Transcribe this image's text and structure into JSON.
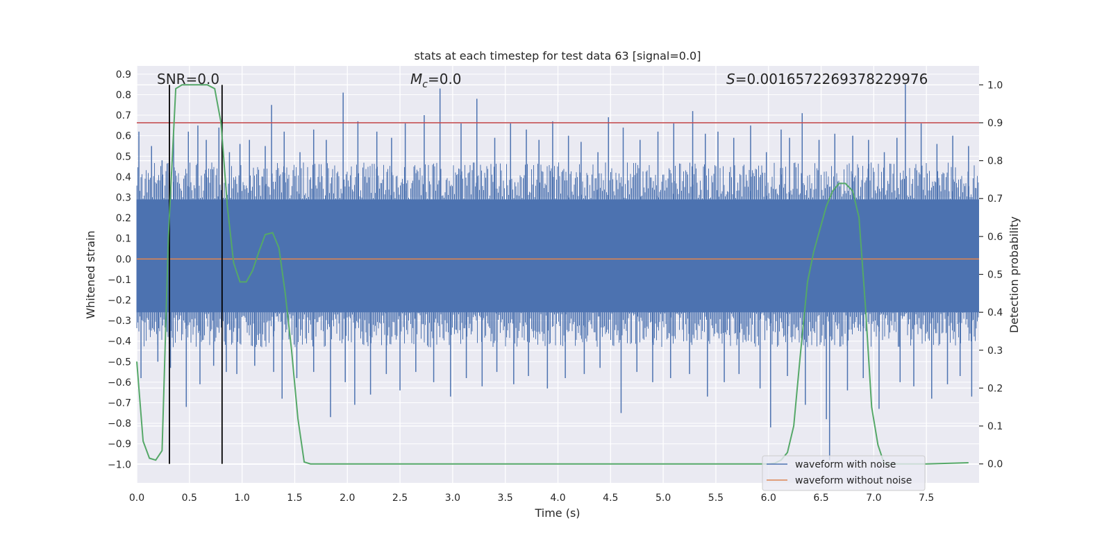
{
  "chart_data": {
    "type": "line",
    "title": "stats at each timestep for test data 63 [signal=0.0]",
    "xlabel": "Time (s)",
    "ylabel_left": "Whitened strain",
    "ylabel_right": "Detection probability",
    "xlim": [
      0.0,
      8.0
    ],
    "ylim_left": [
      -1.09,
      0.94
    ],
    "ylim_right": [
      -0.05,
      1.05
    ],
    "x_ticks": [
      0.0,
      0.5,
      1.0,
      1.5,
      2.0,
      2.5,
      3.0,
      3.5,
      4.0,
      4.5,
      5.0,
      5.5,
      6.0,
      6.5,
      7.0,
      7.5
    ],
    "x_tick_labels": [
      "0.0",
      "0.5",
      "1.0",
      "1.5",
      "2.0",
      "2.5",
      "3.0",
      "3.5",
      "4.0",
      "4.5",
      "5.0",
      "5.5",
      "6.0",
      "6.5",
      "7.0",
      "7.5"
    ],
    "y_left_ticks": [
      0.9,
      0.8,
      0.7,
      0.6,
      0.5,
      0.4,
      0.3,
      0.2,
      0.1,
      0.0,
      -0.1,
      -0.2,
      -0.3,
      -0.4,
      -0.5,
      -0.6,
      -0.7,
      -0.8,
      -0.9,
      -1.0
    ],
    "y_left_tick_labels": [
      "0.9",
      "0.8",
      "0.7",
      "0.6",
      "0.5",
      "0.4",
      "0.3",
      "0.2",
      "0.1",
      "0.0",
      "−0.1",
      "−0.2",
      "−0.3",
      "−0.4",
      "−0.5",
      "−0.6",
      "−0.7",
      "−0.8",
      "−0.9",
      "−1.0"
    ],
    "y_right_ticks": [
      1.0,
      0.9,
      0.8,
      0.7,
      0.6,
      0.5,
      0.4,
      0.3,
      0.2,
      0.1,
      0.0
    ],
    "y_right_tick_labels": [
      "1.0",
      "0.9",
      "0.8",
      "0.7",
      "0.6",
      "0.5",
      "0.4",
      "0.3",
      "0.2",
      "0.1",
      "0.0"
    ],
    "annotations": {
      "snr": "SNR=0.0",
      "mc_symbol": "M",
      "mc_sub": "c",
      "mc_value": "=0.0",
      "s_symbol": "S",
      "s_value": "=0.0016572269378229976"
    },
    "threshold_right": 0.9,
    "vertical_lines_x": [
      0.31,
      0.81
    ],
    "noise_band": {
      "min": -0.26,
      "max": 0.29
    },
    "noise_peaks_up": [
      [
        0.02,
        0.62
      ],
      [
        0.14,
        0.55
      ],
      [
        0.24,
        0.48
      ],
      [
        0.35,
        0.63
      ],
      [
        0.49,
        0.62
      ],
      [
        0.58,
        0.65
      ],
      [
        0.66,
        0.58
      ],
      [
        0.78,
        0.64
      ],
      [
        0.88,
        0.52
      ],
      [
        0.98,
        0.56
      ],
      [
        1.07,
        0.58
      ],
      [
        1.22,
        0.55
      ],
      [
        1.28,
        0.75
      ],
      [
        1.4,
        0.62
      ],
      [
        1.55,
        0.52
      ],
      [
        1.68,
        0.63
      ],
      [
        1.8,
        0.58
      ],
      [
        1.96,
        0.81
      ],
      [
        2.1,
        0.67
      ],
      [
        2.28,
        0.62
      ],
      [
        2.42,
        0.59
      ],
      [
        2.55,
        0.66
      ],
      [
        2.73,
        0.7
      ],
      [
        2.88,
        0.83
      ],
      [
        3.08,
        0.66
      ],
      [
        3.23,
        0.78
      ],
      [
        3.4,
        0.59
      ],
      [
        3.55,
        0.66
      ],
      [
        3.7,
        0.63
      ],
      [
        3.82,
        0.58
      ],
      [
        3.95,
        0.67
      ],
      [
        4.1,
        0.6
      ],
      [
        4.22,
        0.57
      ],
      [
        4.38,
        0.52
      ],
      [
        4.48,
        0.69
      ],
      [
        4.62,
        0.64
      ],
      [
        4.78,
        0.58
      ],
      [
        4.95,
        0.62
      ],
      [
        5.1,
        0.66
      ],
      [
        5.28,
        0.72
      ],
      [
        5.4,
        0.61
      ],
      [
        5.52,
        0.62
      ],
      [
        5.67,
        0.59
      ],
      [
        5.83,
        0.65
      ],
      [
        5.98,
        0.52
      ],
      [
        6.12,
        0.63
      ],
      [
        6.2,
        0.59
      ],
      [
        6.32,
        0.71
      ],
      [
        6.48,
        0.58
      ],
      [
        6.63,
        0.61
      ],
      [
        6.8,
        0.6
      ],
      [
        6.95,
        0.58
      ],
      [
        7.1,
        0.52
      ],
      [
        7.22,
        0.59
      ],
      [
        7.3,
        0.85
      ],
      [
        7.45,
        0.66
      ],
      [
        7.6,
        0.56
      ],
      [
        7.75,
        0.6
      ],
      [
        7.9,
        0.55
      ]
    ],
    "noise_peaks_down": [
      [
        0.04,
        -0.58
      ],
      [
        0.2,
        -0.5
      ],
      [
        0.32,
        -0.53
      ],
      [
        0.47,
        -0.72
      ],
      [
        0.6,
        -0.61
      ],
      [
        0.73,
        -0.52
      ],
      [
        0.85,
        -0.55
      ],
      [
        0.95,
        -0.56
      ],
      [
        1.12,
        -0.52
      ],
      [
        1.3,
        -0.55
      ],
      [
        1.38,
        -0.68
      ],
      [
        1.52,
        -0.58
      ],
      [
        1.68,
        -0.55
      ],
      [
        1.84,
        -0.77
      ],
      [
        1.98,
        -0.6
      ],
      [
        2.07,
        -0.71
      ],
      [
        2.22,
        -0.66
      ],
      [
        2.37,
        -0.56
      ],
      [
        2.5,
        -0.64
      ],
      [
        2.65,
        -0.55
      ],
      [
        2.82,
        -0.6
      ],
      [
        2.98,
        -0.67
      ],
      [
        3.13,
        -0.58
      ],
      [
        3.28,
        -0.62
      ],
      [
        3.42,
        -0.55
      ],
      [
        3.58,
        -0.61
      ],
      [
        3.72,
        -0.57
      ],
      [
        3.9,
        -0.63
      ],
      [
        4.07,
        -0.58
      ],
      [
        4.25,
        -0.56
      ],
      [
        4.4,
        -0.53
      ],
      [
        4.6,
        -0.75
      ],
      [
        4.75,
        -0.55
      ],
      [
        4.9,
        -0.6
      ],
      [
        5.07,
        -0.58
      ],
      [
        5.25,
        -0.56
      ],
      [
        5.42,
        -0.67
      ],
      [
        5.58,
        -0.6
      ],
      [
        5.72,
        -0.56
      ],
      [
        5.92,
        -0.63
      ],
      [
        6.02,
        -0.82
      ],
      [
        6.18,
        -0.57
      ],
      [
        6.35,
        -0.71
      ],
      [
        6.55,
        -0.78
      ],
      [
        6.58,
        -0.98
      ],
      [
        6.75,
        -0.64
      ],
      [
        6.9,
        -0.58
      ],
      [
        7.05,
        -0.73
      ],
      [
        7.25,
        -0.6
      ],
      [
        7.38,
        -0.62
      ],
      [
        7.55,
        -0.68
      ],
      [
        7.7,
        -0.61
      ],
      [
        7.82,
        -0.57
      ],
      [
        7.93,
        -0.67
      ]
    ],
    "series": [
      {
        "name": "waveform with noise",
        "color": "#4c72b0",
        "axis": "left"
      },
      {
        "name": "waveform without noise",
        "color": "#dd8452",
        "axis": "left",
        "x": [
          0.0,
          8.0
        ],
        "y": [
          0.0,
          0.0
        ]
      },
      {
        "color": "#55a868",
        "axis": "right",
        "x": [
          0.0,
          0.06,
          0.12,
          0.18,
          0.24,
          0.3,
          0.37,
          0.43,
          0.49,
          0.55,
          0.61,
          0.67,
          0.74,
          0.8,
          0.86,
          0.92,
          0.98,
          1.04,
          1.1,
          1.16,
          1.22,
          1.29,
          1.35,
          1.41,
          1.47,
          1.53,
          1.59,
          1.65,
          1.72,
          2.0,
          3.0,
          4.0,
          5.0,
          5.5,
          5.9,
          6.0,
          6.06,
          6.12,
          6.18,
          6.24,
          6.3,
          6.37,
          6.43,
          6.49,
          6.55,
          6.61,
          6.67,
          6.73,
          6.8,
          6.86,
          6.92,
          6.98,
          7.04,
          7.1,
          7.5,
          7.9
        ],
        "y": [
          0.27,
          0.06,
          0.015,
          0.01,
          0.035,
          0.6,
          0.99,
          1.0,
          1.0,
          1.0,
          1.0,
          1.0,
          0.99,
          0.9,
          0.68,
          0.53,
          0.48,
          0.48,
          0.51,
          0.56,
          0.605,
          0.61,
          0.57,
          0.45,
          0.3,
          0.12,
          0.005,
          0.0,
          0.0,
          0.0,
          0.0,
          0.0,
          0.0,
          0.0,
          0.0,
          0.0,
          0.002,
          0.01,
          0.03,
          0.1,
          0.28,
          0.48,
          0.56,
          0.62,
          0.68,
          0.72,
          0.74,
          0.74,
          0.72,
          0.65,
          0.42,
          0.15,
          0.05,
          0.0,
          0.0,
          0.003
        ]
      }
    ],
    "colors": {
      "plot_background": "#eaeaf2",
      "grid": "#ffffff",
      "threshold": "#c44e52",
      "vertical_lines": "#000000"
    },
    "grid": true,
    "legend_position": "lower-right"
  }
}
